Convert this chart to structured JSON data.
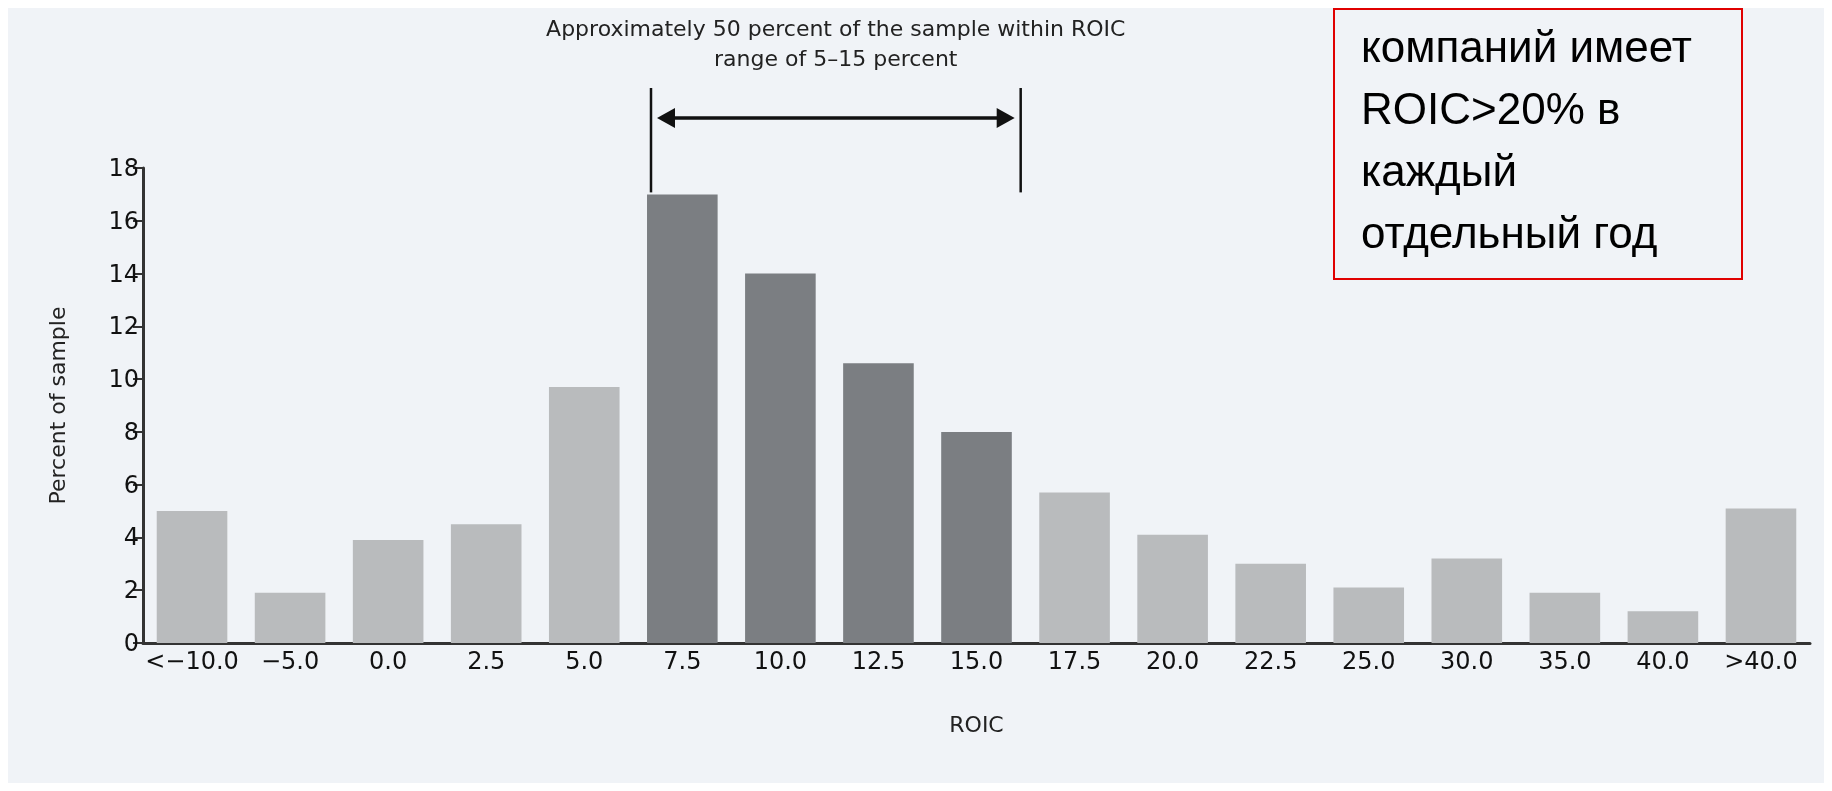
{
  "chart_data": {
    "type": "bar",
    "categories": [
      "<−10.0",
      "−5.0",
      "0.0",
      "2.5",
      "5.0",
      "7.5",
      "10.0",
      "12.5",
      "15.0",
      "17.5",
      "20.0",
      "22.5",
      "25.0",
      "30.0",
      "35.0",
      "40.0",
      ">40.0"
    ],
    "values": [
      5.0,
      1.9,
      3.9,
      4.5,
      9.7,
      17.0,
      14.0,
      10.6,
      8.0,
      5.7,
      4.1,
      3.0,
      2.1,
      3.2,
      1.9,
      1.2,
      5.1
    ],
    "colors": [
      "#b9bbbd",
      "#b9bbbd",
      "#b9bbbd",
      "#b9bbbd",
      "#b9bbbd",
      "#7b7e82",
      "#7b7e82",
      "#7b7e82",
      "#7b7e82",
      "#b9bbbd",
      "#b9bbbd",
      "#b9bbbd",
      "#b9bbbd",
      "#b9bbbd",
      "#b9bbbd",
      "#b9bbbd",
      "#b9bbbd"
    ],
    "xlabel": "ROIC",
    "ylabel": "Percent of sample",
    "ylim": [
      0,
      18
    ],
    "yticks": [
      0,
      2,
      4,
      6,
      8,
      10,
      12,
      14,
      16,
      18
    ],
    "grid": false,
    "annotations": [
      "Approximately 50 percent of the sample within ROIC range of 5–15 percent",
      "компаний имеет ROIC>20% в каждый отдельный год"
    ]
  }
}
